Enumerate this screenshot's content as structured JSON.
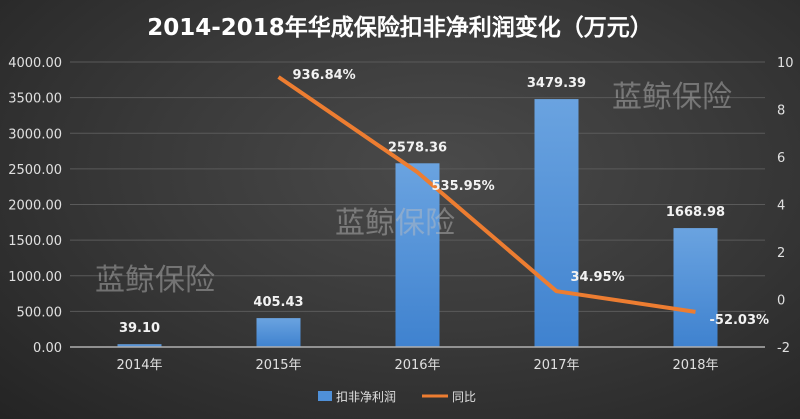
{
  "chart_data": {
    "type": "bar+line",
    "title": "2014-2018年华成保险扣非净利润变化（万元）",
    "categories": [
      "2014年",
      "2015年",
      "2016年",
      "2017年",
      "2018年"
    ],
    "series": [
      {
        "name": "扣非净利润",
        "type": "bar",
        "axis": "left",
        "values": [
          39.1,
          405.43,
          2578.36,
          3479.39,
          1668.98
        ],
        "labels": [
          "39.10",
          "405.43",
          "2578.36",
          "3479.39",
          "1668.98"
        ],
        "color": "#4f90d8"
      },
      {
        "name": "同比",
        "type": "line",
        "axis": "right",
        "values": [
          null,
          9.3684,
          5.3595,
          0.3495,
          -0.5203
        ],
        "labels": [
          "",
          "936.84%",
          "535.95%",
          "34.95%",
          "-52.03%"
        ],
        "color": "#ed7d31"
      }
    ],
    "left_axis": {
      "ylim": [
        0,
        4000
      ],
      "ticks": [
        "0.00",
        "500.00",
        "1000.00",
        "1500.00",
        "2000.00",
        "2500.00",
        "3000.00",
        "3500.00",
        "4000.00"
      ]
    },
    "right_axis": {
      "ylim": [
        -2,
        10
      ],
      "ticks": [
        "-2",
        "0",
        "2",
        "4",
        "6",
        "8",
        "10"
      ]
    },
    "grid": true,
    "legend": "bottom",
    "watermark": "蓝鲸保险"
  }
}
